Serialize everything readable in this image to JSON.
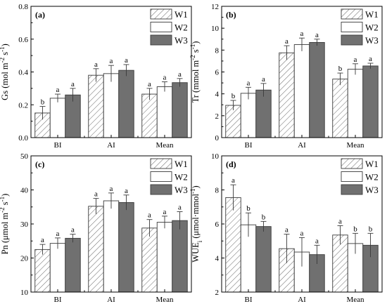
{
  "colors": {
    "W1": "#ffffff",
    "W2": "#ffffff",
    "W3": "#707070",
    "W1_hatch": "#6a6a6a",
    "stroke": "#3a3a3a",
    "axis": "#000000"
  },
  "chart_data": [
    {
      "type": "bar",
      "panel": "(a)",
      "categories": [
        "BI",
        "AI",
        "Mean"
      ],
      "ylabel": "Gs (mol m-2 s-1)",
      "ylabel_base": "Gs (mol m",
      "ylabel_sup1": "-2",
      "ylabel_mid": " s",
      "ylabel_sup2": "-1",
      "ylabel_end": ")",
      "ylim": [
        0.0,
        0.8
      ],
      "yticks": [
        0.0,
        0.2,
        0.4,
        0.6,
        0.8
      ],
      "ytick_labels": [
        "0.0",
        "0.2",
        "0.4",
        "0.6",
        "0.8"
      ],
      "legend": "top-right",
      "series": [
        {
          "name": "W1",
          "values": [
            0.15,
            0.38,
            0.265
          ],
          "errors": [
            0.04,
            0.04,
            0.035
          ],
          "letters": [
            "b",
            "a",
            "a"
          ]
        },
        {
          "name": "W2",
          "values": [
            0.24,
            0.39,
            0.31
          ],
          "errors": [
            0.025,
            0.05,
            0.03
          ],
          "letters": [
            "a",
            "a",
            "a"
          ]
        },
        {
          "name": "W3",
          "values": [
            0.26,
            0.41,
            0.335
          ],
          "errors": [
            0.04,
            0.035,
            0.025
          ],
          "letters": [
            "a",
            "a",
            "a"
          ]
        }
      ]
    },
    {
      "type": "bar",
      "panel": "(b)",
      "categories": [
        "BI",
        "AI",
        "Mean"
      ],
      "ylabel": "Tr (mmol m-2 s-1)",
      "ylabel_base": "Tr (mmol m",
      "ylabel_sup1": "-2",
      "ylabel_mid": " s",
      "ylabel_sup2": "-1",
      "ylabel_end": ")",
      "ylim": [
        0,
        12
      ],
      "yticks": [
        0,
        2,
        4,
        6,
        8,
        10,
        12
      ],
      "ytick_labels": [
        "0",
        "2",
        "4",
        "6",
        "8",
        "10",
        "12"
      ],
      "legend": "top-right",
      "series": [
        {
          "name": "W1",
          "values": [
            2.95,
            7.75,
            5.35
          ],
          "errors": [
            0.45,
            0.65,
            0.55
          ],
          "letters": [
            "b",
            "a",
            "b"
          ]
        },
        {
          "name": "W2",
          "values": [
            4.05,
            8.5,
            6.25
          ],
          "errors": [
            0.55,
            0.6,
            0.5
          ],
          "letters": [
            "a",
            "a",
            "a"
          ]
        },
        {
          "name": "W3",
          "values": [
            4.35,
            8.7,
            6.55
          ],
          "errors": [
            0.6,
            0.3,
            0.25
          ],
          "letters": [
            "a",
            "a",
            "a"
          ]
        }
      ]
    },
    {
      "type": "bar",
      "panel": "(c)",
      "categories": [
        "BI",
        "AI",
        "Mean"
      ],
      "ylabel": "Pn (μmol m-2 s-1)",
      "ylabel_base": "Pn (μmol m",
      "ylabel_sup1": "-2",
      "ylabel_mid": " s",
      "ylabel_sup2": "-1",
      "ylabel_end": ")",
      "ylim": [
        10,
        50
      ],
      "yticks": [
        10,
        20,
        30,
        40,
        50
      ],
      "ytick_labels": [
        "10",
        "20",
        "30",
        "40",
        "50"
      ],
      "legend": "top-right",
      "series": [
        {
          "name": "W1",
          "values": [
            22.5,
            35.2,
            28.8
          ],
          "errors": [
            1.5,
            2.3,
            2.5
          ],
          "letters": [
            "a",
            "a",
            "a"
          ]
        },
        {
          "name": "W2",
          "values": [
            24.3,
            36.8,
            30.5
          ],
          "errors": [
            1.6,
            2.3,
            1.8
          ],
          "letters": [
            "a",
            "a",
            "a"
          ]
        },
        {
          "name": "W3",
          "values": [
            25.8,
            36.3,
            31.0
          ],
          "errors": [
            1.2,
            2.2,
            2.6
          ],
          "letters": [
            "a",
            "a",
            "a"
          ]
        }
      ]
    },
    {
      "type": "bar",
      "panel": "(d)",
      "categories": [
        "BI",
        "AI",
        "Mean"
      ],
      "ylabel": "WUEi (μmol·mmol-1)",
      "ylabel_base": "WUE",
      "ylabel_sub": "i",
      "ylabel_mid": " (μmol·mmol",
      "ylabel_sup2": "-1",
      "ylabel_end": ")",
      "ylim": [
        2,
        10
      ],
      "yticks": [
        2,
        4,
        6,
        8,
        10
      ],
      "ytick_labels": [
        "2",
        "4",
        "6",
        "8",
        "10"
      ],
      "legend": "top-right",
      "series": [
        {
          "name": "W1",
          "values": [
            7.55,
            4.55,
            5.35
          ],
          "errors": [
            0.75,
            0.85,
            0.55
          ],
          "letters": [
            "a",
            "a",
            "a"
          ]
        },
        {
          "name": "W2",
          "values": [
            5.95,
            4.35,
            4.85
          ],
          "errors": [
            0.7,
            0.85,
            0.6
          ],
          "letters": [
            "b",
            "a",
            "b"
          ]
        },
        {
          "name": "W3",
          "values": [
            5.85,
            4.2,
            4.75
          ],
          "errors": [
            0.3,
            0.55,
            0.7
          ],
          "letters": [
            "b",
            "a",
            "b"
          ]
        }
      ]
    }
  ]
}
